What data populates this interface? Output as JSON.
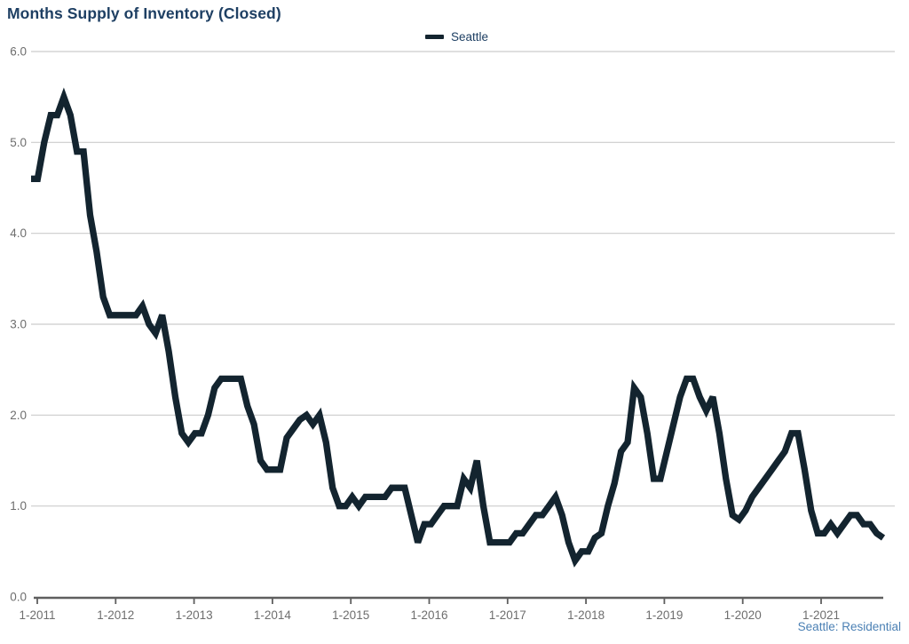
{
  "header": {
    "title": "Months Supply of Inventory (Closed)"
  },
  "legend": {
    "series_label": "Seattle"
  },
  "footer": {
    "source_label": "Seattle: Residential"
  },
  "colors": {
    "line": "#13242f",
    "title_text": "#1e3f63",
    "legend_text": "#1e3f63",
    "footer_text": "#4b80b4",
    "axis_text": "#6e6e6e",
    "axis_line": "#5f5f5f",
    "gridline": "#cccccc",
    "background": "#ffffff"
  },
  "chart_data": {
    "type": "line",
    "title": "Months Supply of Inventory (Closed)",
    "legend_entries": [
      "Seattle"
    ],
    "legend_position": "top-center",
    "grid": "horizontal",
    "ylim": [
      0,
      6
    ],
    "y_tick_labels": [
      "0.0",
      "1.0",
      "2.0",
      "3.0",
      "4.0",
      "5.0",
      "6.0"
    ],
    "x_tick_labels": [
      "1-2011",
      "1-2012",
      "1-2013",
      "1-2014",
      "1-2015",
      "1-2016",
      "1-2017",
      "1-2018",
      "1-2019",
      "1-2020",
      "1-2021"
    ],
    "x_range": {
      "start": "2011-01",
      "end": "2021-11",
      "freq": "monthly",
      "count": 131
    },
    "series": [
      {
        "name": "Seattle",
        "values": [
          4.6,
          4.6,
          5.0,
          5.3,
          5.3,
          5.5,
          5.3,
          4.9,
          4.9,
          4.2,
          3.8,
          3.3,
          3.1,
          3.1,
          3.1,
          3.1,
          3.1,
          3.2,
          3.0,
          2.9,
          3.1,
          2.7,
          2.2,
          1.8,
          1.7,
          1.8,
          1.8,
          2.0,
          2.3,
          2.4,
          2.4,
          2.4,
          2.4,
          2.1,
          1.9,
          1.5,
          1.4,
          1.4,
          1.4,
          1.75,
          1.85,
          1.95,
          2.0,
          1.9,
          2.0,
          1.7,
          1.2,
          1.0,
          1.0,
          1.1,
          1.0,
          1.1,
          1.1,
          1.1,
          1.1,
          1.2,
          1.2,
          1.2,
          0.9,
          0.6,
          0.8,
          0.8,
          0.9,
          1.0,
          1.0,
          1.0,
          1.3,
          1.2,
          1.5,
          1.0,
          0.6,
          0.6,
          0.6,
          0.6,
          0.7,
          0.7,
          0.8,
          0.9,
          0.9,
          1.0,
          1.1,
          0.9,
          0.6,
          0.4,
          0.5,
          0.5,
          0.65,
          0.7,
          1.0,
          1.25,
          1.6,
          1.7,
          2.3,
          2.2,
          1.8,
          1.3,
          1.3,
          1.6,
          1.9,
          2.2,
          2.4,
          2.4,
          2.2,
          2.05,
          2.2,
          1.8,
          1.3,
          0.9,
          0.85,
          0.95,
          1.1,
          1.2,
          1.3,
          1.4,
          1.5,
          1.6,
          1.8,
          1.8,
          1.4,
          0.95,
          0.7,
          0.7,
          0.8,
          0.7,
          0.8,
          0.9,
          0.9,
          0.8,
          0.8,
          0.7,
          0.65
        ]
      }
    ]
  }
}
